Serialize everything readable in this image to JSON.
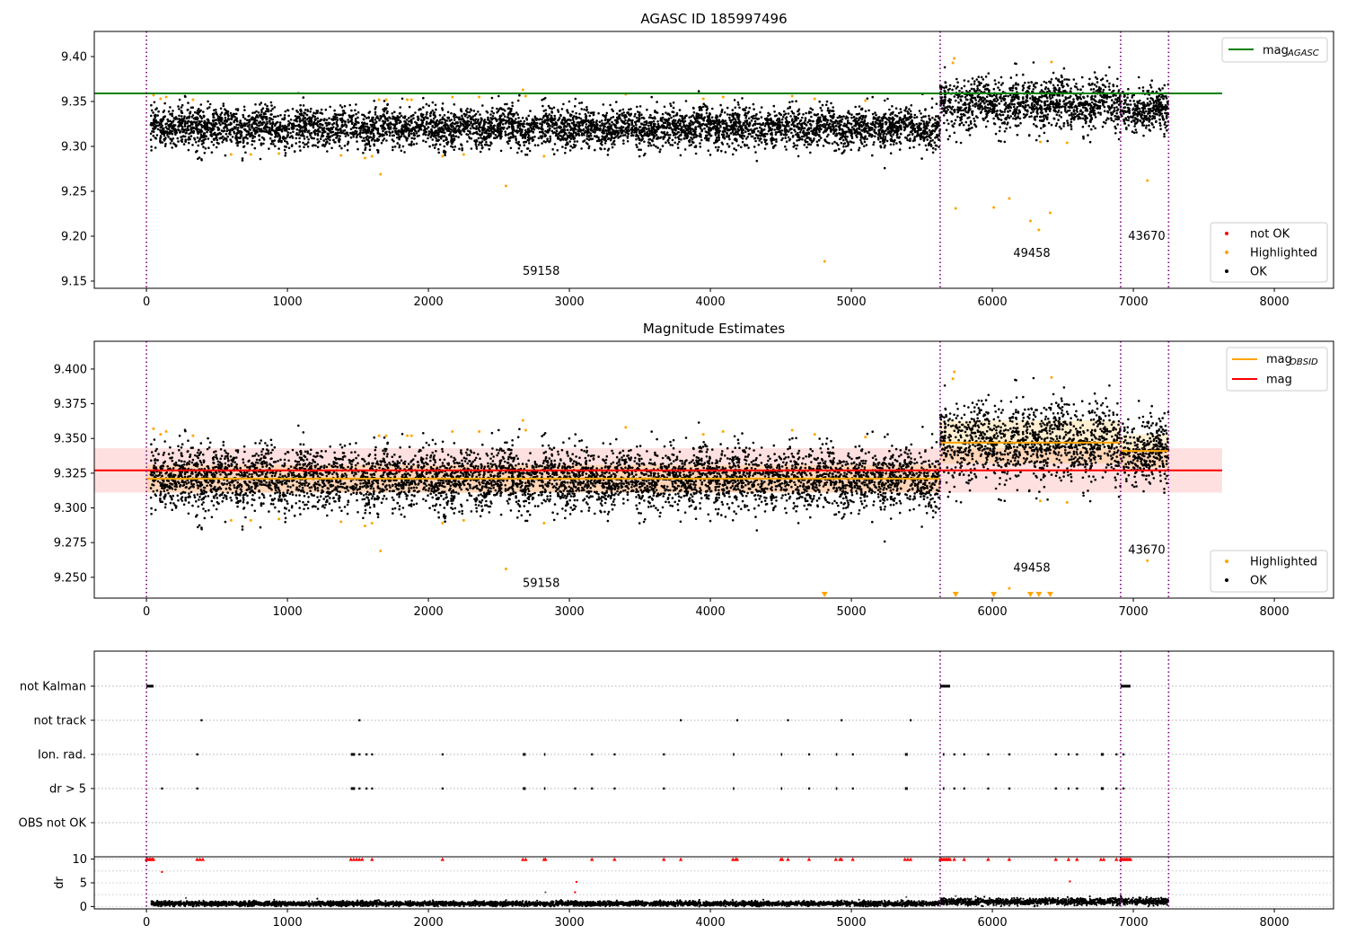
{
  "chart_data": [
    {
      "type": "scatter",
      "title": "AGASC ID 185997496",
      "xlim": [
        -370,
        8420
      ],
      "ylim": [
        9.142,
        9.428
      ],
      "xticks": [
        0,
        1000,
        2000,
        3000,
        4000,
        5000,
        6000,
        7000,
        8000
      ],
      "xtick_labels": [
        "0",
        "1000",
        "2000",
        "3000",
        "4000",
        "5000",
        "6000",
        "7000",
        "8000"
      ],
      "yticks": [
        9.15,
        9.2,
        9.25,
        9.3,
        9.35,
        9.4
      ],
      "ytick_labels": [
        "9.15",
        "9.20",
        "9.25",
        "9.30",
        "9.35",
        "9.40"
      ],
      "obsid_boundaries": [
        0,
        5630,
        6910,
        7250
      ],
      "obsid_labels": [
        {
          "text": "59158",
          "x": 2800,
          "y": 9.157
        },
        {
          "text": "49458",
          "x": 6280,
          "y": 9.177
        },
        {
          "text": "43670",
          "x": 7095,
          "y": 9.196
        }
      ],
      "reference_line": {
        "name": "mag",
        "sub": "AGASC",
        "y": 9.359,
        "x0": -370,
        "x1": 7630,
        "color": "#008000"
      },
      "legend_top": [
        {
          "name": "mag",
          "sub": "AGASC",
          "color": "#008000",
          "marker": "line"
        }
      ],
      "legend_bottom": [
        {
          "name": "not OK",
          "color": "#ff0000",
          "marker": "dot"
        },
        {
          "name": "Highlighted",
          "color": "#ffa500",
          "marker": "dot"
        },
        {
          "name": "OK",
          "color": "#000000",
          "marker": "dot"
        }
      ],
      "series": [
        {
          "name": "OK",
          "color": "#000000",
          "segments": [
            {
              "x0": 30,
              "x1": 5630,
              "mean": 9.321,
              "sd": 0.011
            },
            {
              "x0": 5630,
              "x1": 6910,
              "mean": 9.347,
              "sd": 0.014
            },
            {
              "x0": 6910,
              "x1": 7250,
              "mean": 9.341,
              "sd": 0.012
            }
          ]
        },
        {
          "name": "Highlighted",
          "color": "#ffa500",
          "points": [
            [
              50,
              9.357
            ],
            [
              100,
              9.353
            ],
            [
              140,
              9.355
            ],
            [
              330,
              9.352
            ],
            [
              600,
              9.291
            ],
            [
              740,
              9.291
            ],
            [
              940,
              9.292
            ],
            [
              1380,
              9.29
            ],
            [
              1550,
              9.287
            ],
            [
              1600,
              9.289
            ],
            [
              1650,
              9.352
            ],
            [
              1660,
              9.269
            ],
            [
              1700,
              9.352
            ],
            [
              1850,
              9.352
            ],
            [
              1880,
              9.352
            ],
            [
              2100,
              9.289
            ],
            [
              2170,
              9.355
            ],
            [
              2250,
              9.291
            ],
            [
              2360,
              9.355
            ],
            [
              2550,
              9.256
            ],
            [
              2670,
              9.363
            ],
            [
              2690,
              9.356
            ],
            [
              2820,
              9.289
            ],
            [
              3400,
              9.358
            ],
            [
              3950,
              9.353
            ],
            [
              4090,
              9.355
            ],
            [
              4580,
              9.356
            ],
            [
              4740,
              9.353
            ],
            [
              4810,
              9.172
            ],
            [
              5100,
              9.351
            ],
            [
              5720,
              9.393
            ],
            [
              5730,
              9.398
            ],
            [
              5740,
              9.231
            ],
            [
              6010,
              9.232
            ],
            [
              6120,
              9.242
            ],
            [
              6270,
              9.217
            ],
            [
              6330,
              9.207
            ],
            [
              6340,
              9.305
            ],
            [
              6410,
              9.226
            ],
            [
              6420,
              9.394
            ],
            [
              6530,
              9.304
            ],
            [
              7100,
              9.262
            ]
          ]
        }
      ]
    },
    {
      "type": "scatter",
      "title": "Magnitude Estimates",
      "xlim": [
        -370,
        8420
      ],
      "ylim": [
        9.235,
        9.42
      ],
      "xticks": [
        0,
        1000,
        2000,
        3000,
        4000,
        5000,
        6000,
        7000,
        8000
      ],
      "xtick_labels": [
        "0",
        "1000",
        "2000",
        "3000",
        "4000",
        "5000",
        "6000",
        "7000",
        "8000"
      ],
      "yticks": [
        9.25,
        9.275,
        9.3,
        9.325,
        9.35,
        9.375,
        9.4
      ],
      "ytick_labels": [
        "9.250",
        "9.275",
        "9.300",
        "9.325",
        "9.350",
        "9.375",
        "9.400"
      ],
      "obsid_boundaries": [
        0,
        5630,
        6910,
        7250
      ],
      "obsid_labels": [
        {
          "text": "59158",
          "x": 2800,
          "y": 9.243
        },
        {
          "text": "49458",
          "x": 6280,
          "y": 9.254
        },
        {
          "text": "43670",
          "x": 7095,
          "y": 9.267
        }
      ],
      "mag_line": {
        "name": "mag",
        "y": 9.327,
        "band": [
          9.311,
          9.343
        ],
        "x0": -370,
        "x1": 7630,
        "color": "#ff0000"
      },
      "obsid_mags": [
        {
          "x0": 0,
          "x1": 5630,
          "y": 9.321,
          "band": [
            9.311,
            9.331
          ]
        },
        {
          "x0": 5630,
          "x1": 6910,
          "y": 9.347,
          "band": [
            9.332,
            9.363
          ]
        },
        {
          "x0": 6910,
          "x1": 7250,
          "y": 9.341,
          "band": [
            9.329,
            9.353
          ]
        }
      ],
      "legend_top": [
        {
          "name": "mag",
          "sub": "OBSID",
          "color": "#ffa500",
          "marker": "line"
        },
        {
          "name": "mag",
          "color": "#ff0000",
          "marker": "line"
        }
      ],
      "legend_bottom": [
        {
          "name": "Highlighted",
          "color": "#ffa500",
          "marker": "dot"
        },
        {
          "name": "OK",
          "color": "#000000",
          "marker": "dot"
        }
      ],
      "offscale_markers": [
        4810,
        5740,
        6010,
        6270,
        6330,
        6410
      ],
      "series": [
        {
          "name": "OK",
          "color": "#000000",
          "segments": [
            {
              "x0": 30,
              "x1": 5630,
              "mean": 9.321,
              "sd": 0.011
            },
            {
              "x0": 5630,
              "x1": 6910,
              "mean": 9.347,
              "sd": 0.014
            },
            {
              "x0": 6910,
              "x1": 7250,
              "mean": 9.341,
              "sd": 0.012
            }
          ]
        },
        {
          "name": "Highlighted",
          "color": "#ffa500",
          "points": [
            [
              50,
              9.357
            ],
            [
              100,
              9.353
            ],
            [
              140,
              9.355
            ],
            [
              330,
              9.352
            ],
            [
              600,
              9.291
            ],
            [
              740,
              9.291
            ],
            [
              940,
              9.292
            ],
            [
              1380,
              9.29
            ],
            [
              1550,
              9.287
            ],
            [
              1600,
              9.289
            ],
            [
              1650,
              9.352
            ],
            [
              1660,
              9.269
            ],
            [
              1700,
              9.352
            ],
            [
              1850,
              9.352
            ],
            [
              1880,
              9.352
            ],
            [
              2100,
              9.289
            ],
            [
              2170,
              9.355
            ],
            [
              2250,
              9.291
            ],
            [
              2360,
              9.355
            ],
            [
              2550,
              9.256
            ],
            [
              2670,
              9.363
            ],
            [
              2690,
              9.356
            ],
            [
              2820,
              9.289
            ],
            [
              3400,
              9.358
            ],
            [
              3950,
              9.353
            ],
            [
              4090,
              9.355
            ],
            [
              4580,
              9.356
            ],
            [
              4740,
              9.353
            ],
            [
              5100,
              9.351
            ],
            [
              5720,
              9.393
            ],
            [
              5730,
              9.398
            ],
            [
              6120,
              9.242
            ],
            [
              6340,
              9.305
            ],
            [
              6420,
              9.394
            ],
            [
              6530,
              9.304
            ],
            [
              7100,
              9.262
            ]
          ]
        }
      ]
    },
    {
      "type": "scatter",
      "title": "",
      "xlim": [
        -370,
        8420
      ],
      "categories": [
        "not Kalman",
        "not track",
        "Ion. rad.",
        "dr > 5",
        "OBS not OK"
      ],
      "obsid_boundaries": [
        0,
        5630,
        6910,
        7250
      ],
      "flags": {
        "not Kalman": [
          [
            0,
            50
          ],
          [
            5630,
            5700
          ],
          [
            6910,
            6980
          ]
        ],
        "not track": [
          [
            390,
            390
          ],
          [
            1510,
            1510
          ],
          [
            3790,
            3790
          ],
          [
            4190,
            4195
          ],
          [
            4550,
            4550
          ],
          [
            4930,
            4930
          ],
          [
            5420,
            5420
          ]
        ],
        "Ion. rad.": [
          [
            360,
            365
          ],
          [
            1450,
            1480
          ],
          [
            1510,
            1510
          ],
          [
            1560,
            1560
          ],
          [
            1600,
            1600
          ],
          [
            2100,
            2100
          ],
          [
            2670,
            2690
          ],
          [
            2820,
            2830
          ],
          [
            3160,
            3160
          ],
          [
            3320,
            3320
          ],
          [
            3670,
            3670
          ],
          [
            4160,
            4170
          ],
          [
            4500,
            4510
          ],
          [
            4700,
            4700
          ],
          [
            4890,
            4900
          ],
          [
            5010,
            5010
          ],
          [
            5380,
            5400
          ],
          [
            5650,
            5660
          ],
          [
            5730,
            5730
          ],
          [
            5800,
            5800
          ],
          [
            5970,
            5970
          ],
          [
            6120,
            6120
          ],
          [
            6450,
            6450
          ],
          [
            6540,
            6540
          ],
          [
            6600,
            6600
          ],
          [
            6770,
            6790
          ],
          [
            6880,
            6880
          ],
          [
            6930,
            6930
          ]
        ],
        "dr > 5": [
          [
            110,
            110
          ],
          [
            360,
            365
          ],
          [
            1450,
            1480
          ],
          [
            1510,
            1510
          ],
          [
            1560,
            1560
          ],
          [
            1600,
            1600
          ],
          [
            2100,
            2100
          ],
          [
            2670,
            2690
          ],
          [
            2820,
            2830
          ],
          [
            3040,
            3040
          ],
          [
            3160,
            3160
          ],
          [
            3320,
            3320
          ],
          [
            3670,
            3670
          ],
          [
            4160,
            4170
          ],
          [
            4500,
            4510
          ],
          [
            4700,
            4700
          ],
          [
            4890,
            4900
          ],
          [
            5010,
            5010
          ],
          [
            5380,
            5400
          ],
          [
            5650,
            5660
          ],
          [
            5730,
            5730
          ],
          [
            5800,
            5800
          ],
          [
            5970,
            5970
          ],
          [
            6120,
            6120
          ],
          [
            6450,
            6450
          ],
          [
            6540,
            6540
          ],
          [
            6600,
            6600
          ],
          [
            6770,
            6790
          ],
          [
            6880,
            6880
          ],
          [
            6930,
            6930
          ]
        ],
        "OBS not OK": []
      }
    },
    {
      "type": "scatter",
      "title": "",
      "ylabel": "dr",
      "xlim": [
        -370,
        8420
      ],
      "ylim": [
        -0.5,
        10.5
      ],
      "yticks": [
        0,
        5,
        10
      ],
      "ytick_labels": [
        "0",
        "5",
        "10"
      ],
      "xticks": [
        0,
        1000,
        2000,
        3000,
        4000,
        5000,
        6000,
        7000,
        8000
      ],
      "xtick_labels": [
        "0",
        "1000",
        "2000",
        "3000",
        "4000",
        "5000",
        "6000",
        "7000",
        "8000"
      ],
      "obsid_boundaries": [
        0,
        5630,
        6910,
        7250
      ],
      "series": [
        {
          "name": "OK",
          "color": "#000000",
          "segments": [
            {
              "x0": 30,
              "x1": 5630,
              "mean": 0.6,
              "sd": 0.25
            },
            {
              "x0": 5630,
              "x1": 6910,
              "mean": 1.0,
              "sd": 0.35
            },
            {
              "x0": 6910,
              "x1": 7250,
              "mean": 1.1,
              "sd": 0.35
            }
          ]
        },
        {
          "name": "not OK",
          "color": "#ff0000",
          "capped_at": 10,
          "x": [
            0,
            10,
            20,
            30,
            40,
            50,
            360,
            380,
            400,
            1450,
            1470,
            1490,
            1510,
            1530,
            1600,
            2100,
            2670,
            2690,
            2820,
            2830,
            3160,
            3320,
            3670,
            3790,
            4160,
            4180,
            4190,
            4500,
            4510,
            4550,
            4700,
            4890,
            4920,
            4930,
            5010,
            5380,
            5400,
            5420,
            5630,
            5640,
            5650,
            5660,
            5670,
            5680,
            5690,
            5700,
            5730,
            5800,
            5970,
            6120,
            6450,
            6540,
            6600,
            6770,
            6790,
            6880,
            6910,
            6920,
            6930,
            6940,
            6950,
            6960,
            6970,
            6980
          ]
        },
        {
          "name": "outliers",
          "color": "#ff0000",
          "points": [
            [
              110,
              7.3
            ],
            [
              3040,
              3.0
            ],
            [
              3050,
              5.2
            ],
            [
              6550,
              5.3
            ]
          ]
        },
        {
          "name": "grey",
          "color": "#555555",
          "points": [
            [
              2830,
              3.0
            ],
            [
              5390,
              2.0
            ],
            [
              280,
              1.8
            ],
            [
              5740,
              2.2
            ]
          ]
        }
      ]
    }
  ]
}
